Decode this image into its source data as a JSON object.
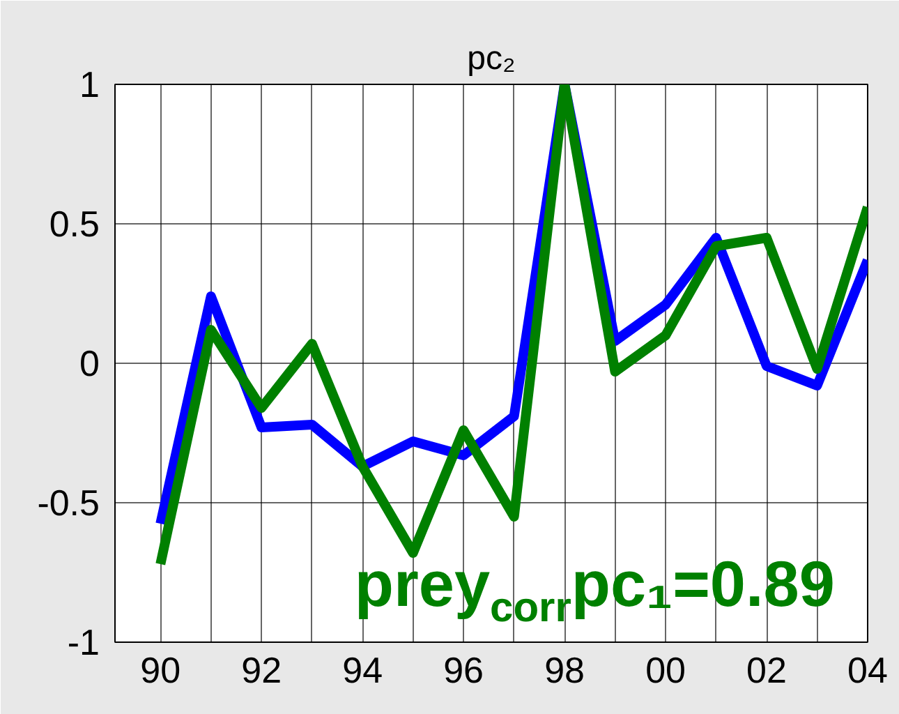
{
  "chart_data": {
    "type": "line",
    "title": "pc₂",
    "x": [
      1990,
      1991,
      1992,
      1993,
      1994,
      1995,
      1996,
      1997,
      1998,
      1999,
      2000,
      2001,
      2002,
      2003,
      2004
    ],
    "series": [
      {
        "color": "#0000ff",
        "values": [
          -0.575,
          0.24,
          -0.23,
          -0.22,
          -0.37,
          -0.28,
          -0.33,
          -0.19,
          1,
          0.08,
          0.21,
          0.45,
          -0.01,
          -0.08,
          0.37
        ]
      },
      {
        "color": "#008000",
        "values": [
          -0.72,
          0.12,
          -0.16,
          0.07,
          -0.37,
          -0.68,
          -0.24,
          -0.55,
          1,
          -0.03,
          0.1,
          0.42,
          0.45,
          -0.02,
          0.56
        ]
      }
    ],
    "xlim": [
      1989.1,
      2004
    ],
    "xticks": [
      {
        "value": 1990,
        "label": "90"
      },
      {
        "value": 1991,
        "label": null
      },
      {
        "value": 1992,
        "label": "92"
      },
      {
        "value": 1993,
        "label": null
      },
      {
        "value": 1994,
        "label": "94"
      },
      {
        "value": 1995,
        "label": null
      },
      {
        "value": 1996,
        "label": "96"
      },
      {
        "value": 1997,
        "label": null
      },
      {
        "value": 1998,
        "label": "98"
      },
      {
        "value": 1999,
        "label": null
      },
      {
        "value": 2000,
        "label": "00"
      },
      {
        "value": 2001,
        "label": null
      },
      {
        "value": 2002,
        "label": "02"
      },
      {
        "value": 2003,
        "label": null
      },
      {
        "value": 2004,
        "label": "04"
      }
    ],
    "ylim": [
      -1,
      1
    ],
    "yticks": [
      -1,
      -0.5,
      0,
      0.5,
      1
    ],
    "grid": true,
    "marker": "none",
    "line_style": "solid",
    "annotations": [
      "prey$_{corr}$pc₁=0.89"
    ]
  }
}
